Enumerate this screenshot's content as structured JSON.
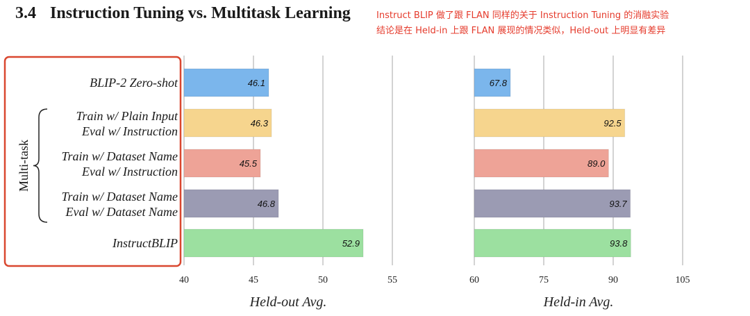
{
  "section": {
    "number": "3.4",
    "title": "Instruction Tuning vs. Multitask Learning"
  },
  "annotation": {
    "line1": "Instruct BLIP 做了跟 FLAN 同样的关于 Instruction Tuning 的消融实验",
    "line2": "结论是在 Held-in 上跟 FLAN 展现的情况类似，Held-out 上明显有差异",
    "color": "#e53b2c"
  },
  "chart_data": {
    "type": "bar",
    "orientation": "horizontal",
    "group_label": "Multi-task",
    "categories": [
      [
        "BLIP-2 Zero-shot"
      ],
      [
        "Train w/ Plain Input",
        "Eval w/ Instruction"
      ],
      [
        "Train w/ Dataset Name",
        "Eval w/ Instruction"
      ],
      [
        "Train w/ Dataset Name",
        "Eval w/ Dataset Name"
      ],
      [
        "InstructBLIP"
      ]
    ],
    "bar_colors": [
      "#7bb6ec",
      "#f6d58e",
      "#eea397",
      "#9b9bb3",
      "#9ce0a0"
    ],
    "panels": [
      {
        "xlabel": "Held-out Avg.",
        "xlim": [
          40,
          55
        ],
        "ticks": [
          "40",
          "45",
          "50",
          "55"
        ],
        "values": [
          46.1,
          46.3,
          45.5,
          46.8,
          52.9
        ],
        "labels": [
          "46.1",
          "46.3",
          "45.5",
          "46.8",
          "52.9"
        ]
      },
      {
        "xlabel": "Held-in Avg.",
        "xlim": [
          60,
          105
        ],
        "ticks": [
          "60",
          "75",
          "90",
          "105"
        ],
        "values": [
          67.8,
          92.5,
          89.0,
          93.7,
          93.8
        ],
        "labels": [
          "67.8",
          "92.5",
          "89.0",
          "93.7",
          "93.8"
        ]
      }
    ],
    "grid": true,
    "highlight_box_color": "#d9472f"
  }
}
